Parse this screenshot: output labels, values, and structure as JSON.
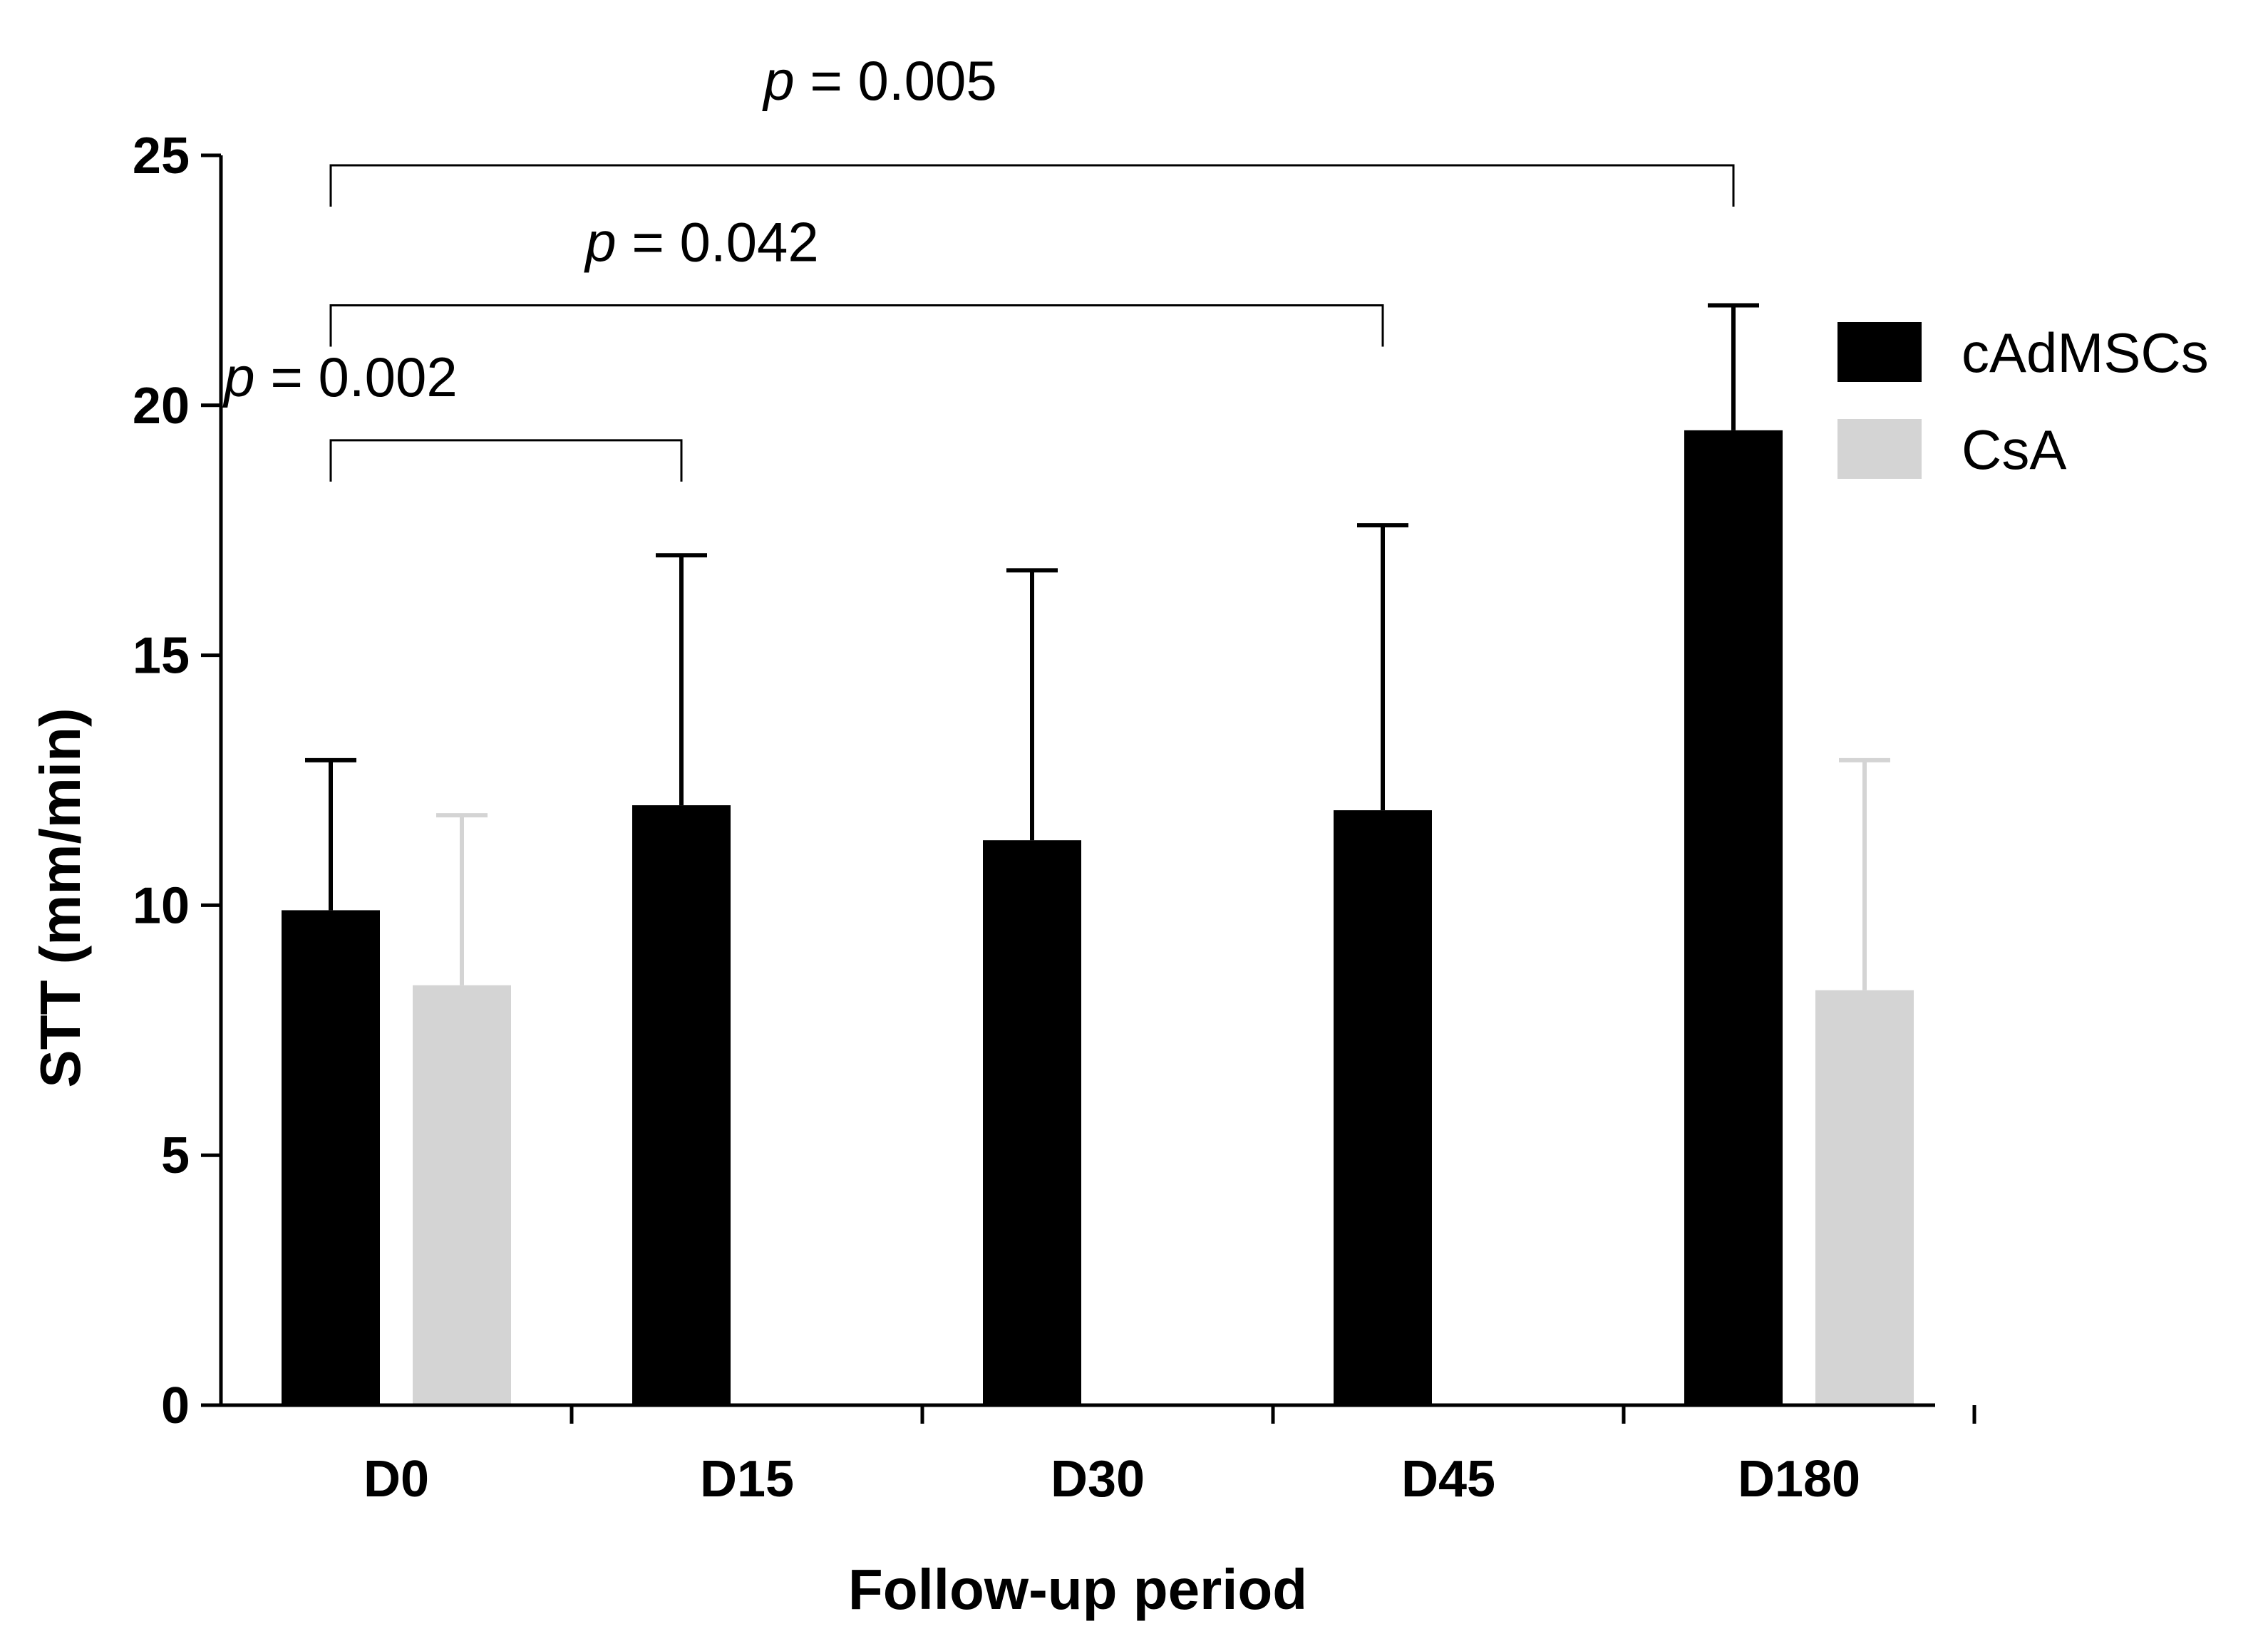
{
  "chart_data": {
    "type": "bar",
    "title": "",
    "xlabel": "Follow-up period",
    "ylabel": "STT (mm/min)",
    "ylim": [
      0,
      25
    ],
    "yticks": [
      0,
      5,
      10,
      15,
      20,
      25
    ],
    "grid": false,
    "legend_position": "top-right",
    "categories": [
      "D0",
      "D15",
      "D30",
      "D45",
      "D180"
    ],
    "series": [
      {
        "name": "cAdMSCs",
        "color": "#000000",
        "values": [
          9.9,
          12.0,
          11.3,
          11.9,
          19.5
        ],
        "errors": [
          3.0,
          5.0,
          5.4,
          5.7,
          2.5
        ]
      },
      {
        "name": "CsA",
        "color": "#d4d4d4",
        "values": [
          8.4,
          null,
          null,
          null,
          8.3
        ],
        "errors": [
          3.4,
          null,
          null,
          null,
          4.6
        ]
      }
    ],
    "annotations": [
      {
        "from": "D0",
        "to": "D15",
        "level": 19.3,
        "prefix": "p",
        "text": "= 0.002"
      },
      {
        "from": "D0",
        "to": "D45",
        "level": 22.0,
        "prefix": "p",
        "text": "= 0.042"
      },
      {
        "from": "D0",
        "to": "D180",
        "level": 24.8,
        "prefix": "p",
        "text": "= 0.005"
      }
    ]
  }
}
